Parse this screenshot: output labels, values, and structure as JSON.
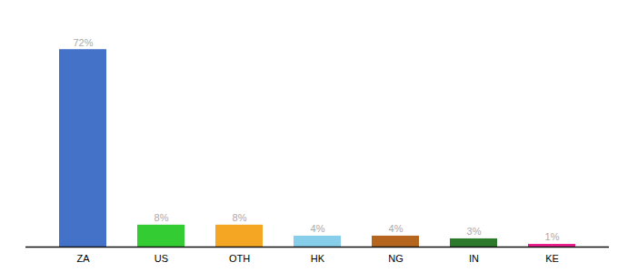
{
  "chart_data": {
    "type": "bar",
    "categories": [
      "ZA",
      "US",
      "OTH",
      "HK",
      "NG",
      "IN",
      "KE"
    ],
    "values": [
      72,
      8,
      8,
      4,
      4,
      3,
      1
    ],
    "value_labels": [
      "72%",
      "8%",
      "8%",
      "4%",
      "4%",
      "3%",
      "1%"
    ],
    "colors": [
      "#4472c9",
      "#33cc33",
      "#f5a623",
      "#87ceeb",
      "#b5651d",
      "#2d7a2d",
      "#e91e8c"
    ],
    "ylim": [
      0,
      82
    ],
    "data_labels": true,
    "tick_labels": "x",
    "grid": false
  }
}
